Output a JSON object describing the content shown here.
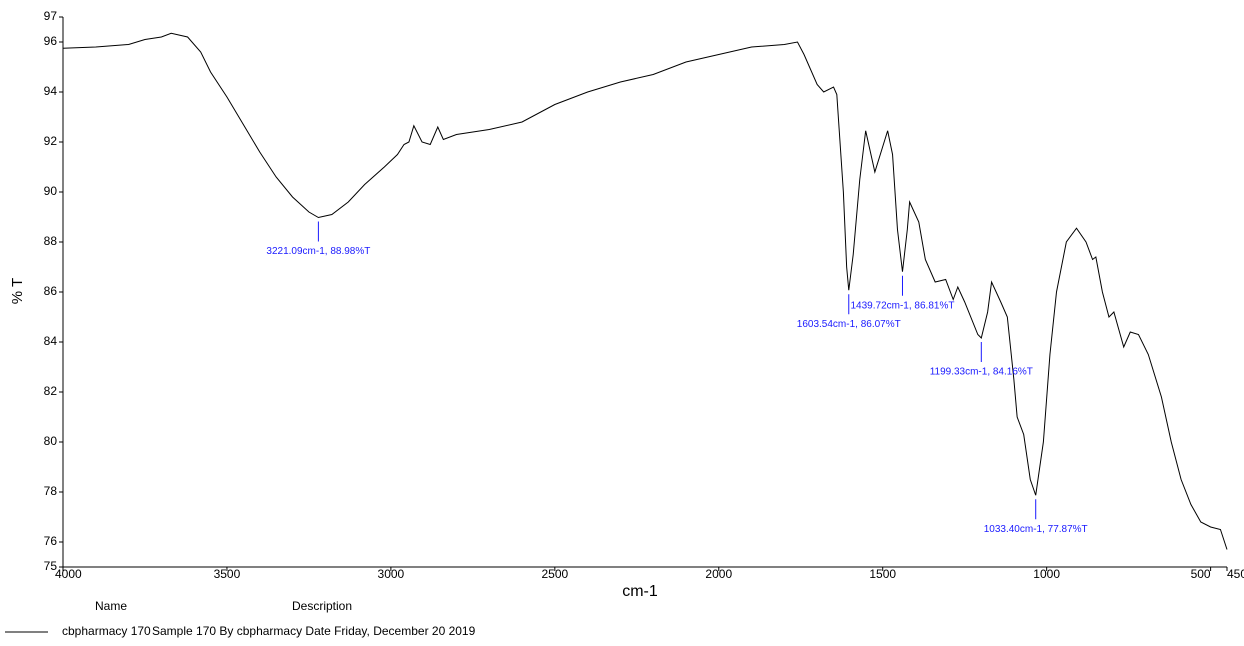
{
  "chart_data": {
    "type": "line",
    "xlabel": "cm-1",
    "ylabel": "% T",
    "xlim": [
      4000,
      450
    ],
    "ylim": [
      75,
      97
    ],
    "xticks": [
      4000,
      3500,
      3000,
      2500,
      2000,
      1500,
      1000,
      500,
      450
    ],
    "yticks": [
      75,
      76,
      78,
      80,
      82,
      84,
      86,
      88,
      90,
      92,
      94,
      96,
      97
    ],
    "x": [
      4000,
      3900,
      3800,
      3750,
      3700,
      3670,
      3620,
      3580,
      3550,
      3500,
      3450,
      3400,
      3350,
      3300,
      3250,
      3221.09,
      3180,
      3130,
      3080,
      3020,
      2980,
      2960,
      2945,
      2930,
      2905,
      2880,
      2857,
      2840,
      2800,
      2700,
      2600,
      2500,
      2400,
      2300,
      2200,
      2100,
      2000,
      1900,
      1800,
      1760,
      1740,
      1700,
      1680,
      1650,
      1640,
      1620,
      1610,
      1603.54,
      1590,
      1580,
      1570,
      1552,
      1524,
      1485,
      1470,
      1455,
      1439.72,
      1425,
      1418,
      1390,
      1370,
      1340,
      1308,
      1285,
      1271,
      1250,
      1210,
      1199.33,
      1180,
      1168,
      1140,
      1120,
      1100,
      1090,
      1070,
      1050,
      1033.4,
      1010,
      990,
      970,
      940,
      909,
      880,
      860,
      850,
      830,
      810,
      795,
      780,
      765,
      745,
      720,
      690,
      650,
      620,
      590,
      560,
      530,
      500,
      470,
      450
    ],
    "series": [
      {
        "name": "cbpharmacy 170",
        "description": "Sample 170 By cbpharmacy Date Friday, December 20 2019",
        "color": "#000000",
        "values": [
          95.75,
          95.8,
          95.9,
          96.1,
          96.2,
          96.35,
          96.2,
          95.6,
          94.8,
          93.8,
          92.7,
          91.6,
          90.6,
          89.8,
          89.2,
          88.98,
          89.1,
          89.6,
          90.3,
          91.0,
          91.5,
          91.9,
          92.0,
          92.65,
          92.0,
          91.9,
          92.6,
          92.1,
          92.3,
          92.5,
          92.8,
          93.5,
          94.0,
          94.4,
          94.7,
          95.2,
          95.5,
          95.8,
          95.9,
          96.0,
          95.5,
          94.3,
          94.0,
          94.2,
          93.9,
          90.0,
          87.0,
          86.07,
          87.5,
          89.0,
          90.5,
          92.45,
          90.8,
          92.45,
          91.5,
          88.5,
          86.81,
          88.5,
          89.6,
          88.8,
          87.3,
          86.4,
          86.5,
          85.7,
          86.2,
          85.6,
          84.3,
          84.16,
          85.2,
          86.4,
          85.6,
          85.0,
          82.5,
          81.0,
          80.3,
          78.5,
          77.87,
          80.0,
          83.5,
          86.0,
          88.0,
          88.55,
          88.0,
          87.3,
          87.4,
          86.0,
          85.0,
          85.2,
          84.5,
          83.8,
          84.4,
          84.3,
          83.5,
          81.8,
          80.0,
          78.5,
          77.5,
          76.8,
          76.6,
          76.5,
          75.7
        ]
      }
    ],
    "annotations": [
      {
        "x": 3221.09,
        "y": 88.98,
        "label": "3221.09cm-1, 88.98%T"
      },
      {
        "x": 1603.54,
        "y": 86.07,
        "label": "1603.54cm-1, 86.07%T"
      },
      {
        "x": 1439.72,
        "y": 86.81,
        "label": "1439.72cm-1, 86.81%T"
      },
      {
        "x": 1199.33,
        "y": 84.16,
        "label": "1199.33cm-1, 84.16%T"
      },
      {
        "x": 1033.4,
        "y": 77.87,
        "label": "1033.40cm-1, 77.87%T"
      }
    ],
    "legend_headers": [
      "Name",
      "Description"
    ]
  }
}
